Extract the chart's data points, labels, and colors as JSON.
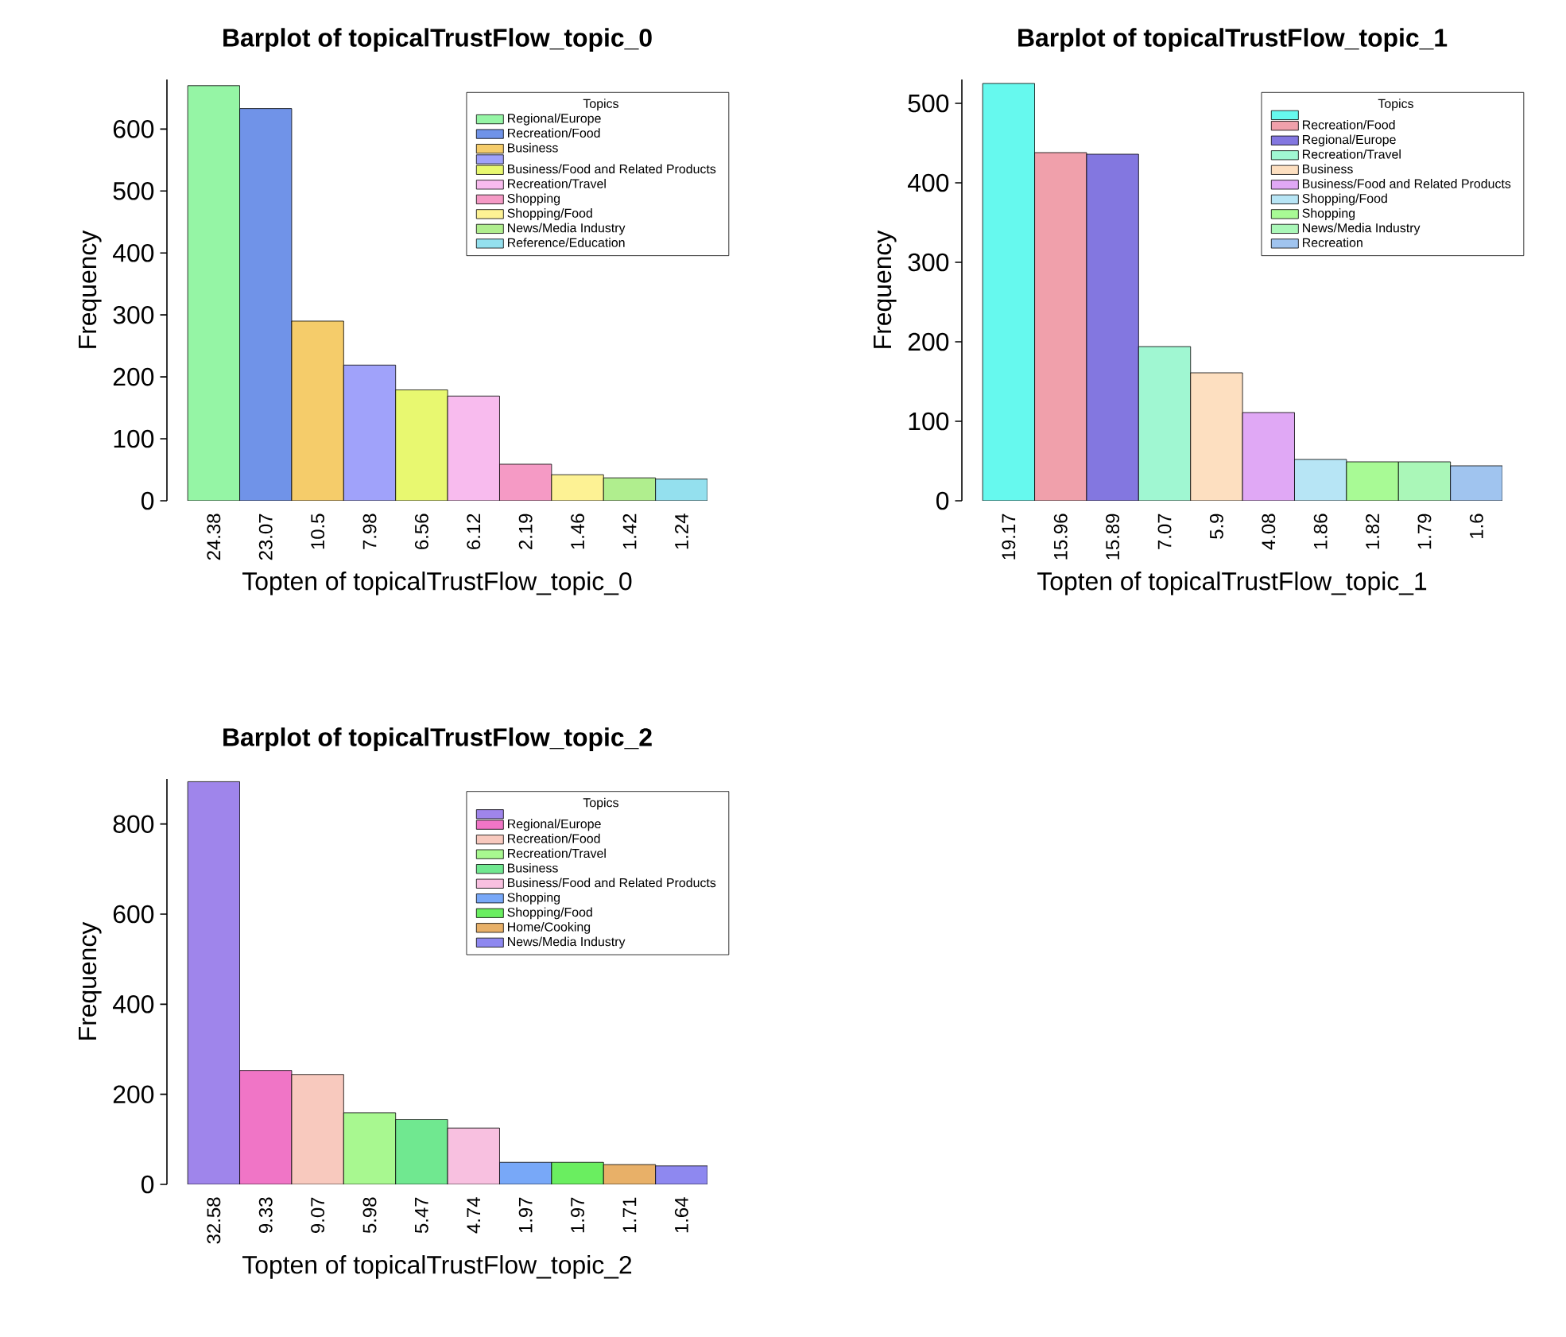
{
  "chart_data": [
    {
      "type": "bar",
      "title": "Barplot of topicalTrustFlow_topic_0",
      "xlabel": "Topten of topicalTrustFlow_topic_0",
      "ylabel": "Frequency",
      "legend_title": "Topics",
      "legend": "top right",
      "categories": [
        "24.38",
        "23.07",
        "10.5",
        "7.98",
        "6.56",
        "6.12",
        "2.19",
        "1.46",
        "1.42",
        "1.24"
      ],
      "ylim": [
        0,
        680
      ],
      "yticks": [
        0,
        100,
        200,
        300,
        400,
        500,
        600
      ],
      "series": [
        {
          "name": "Regional/Europe",
          "color": "#95f5a5",
          "values": [
            670,
            null,
            null,
            null,
            null,
            null,
            null,
            null,
            null,
            null
          ]
        },
        {
          "name": "Recreation/Food",
          "color": "#7093e8",
          "values": [
            null,
            633,
            null,
            null,
            null,
            null,
            null,
            null,
            null,
            null
          ]
        },
        {
          "name": "Business",
          "color": "#f5cc6a",
          "values": [
            null,
            null,
            290,
            null,
            null,
            null,
            null,
            null,
            null,
            null
          ]
        },
        {
          "color": "#a0a2fa",
          "values": [
            null,
            null,
            null,
            219,
            null,
            null,
            null,
            null,
            null,
            null
          ]
        },
        {
          "name": "Business/Food and Related Products",
          "color": "#e8f870",
          "values": [
            null,
            null,
            null,
            null,
            179,
            null,
            null,
            null,
            null,
            null
          ]
        },
        {
          "name": "Recreation/Travel",
          "color": "#f8bbee",
          "values": [
            null,
            null,
            null,
            null,
            null,
            169,
            null,
            null,
            null,
            null
          ]
        },
        {
          "name": "Shopping",
          "color": "#f59ac5",
          "values": [
            null,
            null,
            null,
            null,
            null,
            null,
            59,
            null,
            null,
            null
          ]
        },
        {
          "name": "Shopping/Food",
          "color": "#fdf294",
          "values": [
            null,
            null,
            null,
            null,
            null,
            null,
            null,
            42,
            null,
            null
          ]
        },
        {
          "name": "News/Media Industry",
          "color": "#b0ee8e",
          "values": [
            null,
            null,
            null,
            null,
            null,
            null,
            null,
            null,
            37,
            null
          ]
        },
        {
          "name": "Reference/Education",
          "color": "#94e0ee",
          "values": [
            null,
            null,
            null,
            null,
            null,
            null,
            null,
            null,
            null,
            35
          ]
        }
      ]
    },
    {
      "type": "bar",
      "title": "Barplot of topicalTrustFlow_topic_1",
      "xlabel": "Topten of topicalTrustFlow_topic_1",
      "ylabel": "Frequency",
      "legend_title": "Topics",
      "legend": "top right",
      "categories": [
        "19.17",
        "15.96",
        "15.89",
        "7.07",
        "5.9",
        "4.08",
        "1.86",
        "1.82",
        "1.79",
        "1.6"
      ],
      "ylim": [
        0,
        530
      ],
      "yticks": [
        0,
        100,
        200,
        300,
        400,
        500
      ],
      "series": [
        {
          "color": "#66f9ee",
          "values": [
            525,
            null,
            null,
            null,
            null,
            null,
            null,
            null,
            null,
            null
          ]
        },
        {
          "name": "Recreation/Food",
          "color": "#f0a0ab",
          "values": [
            null,
            438,
            null,
            null,
            null,
            null,
            null,
            null,
            null,
            null
          ]
        },
        {
          "name": "Regional/Europe",
          "color": "#8377e0",
          "values": [
            null,
            null,
            436,
            null,
            null,
            null,
            null,
            null,
            null,
            null
          ]
        },
        {
          "name": "Recreation/Travel",
          "color": "#a0f7d2",
          "values": [
            null,
            null,
            null,
            194,
            null,
            null,
            null,
            null,
            null,
            null
          ]
        },
        {
          "name": "Business",
          "color": "#fddfc0",
          "values": [
            null,
            null,
            null,
            null,
            161,
            null,
            null,
            null,
            null,
            null
          ]
        },
        {
          "name": "Business/Food and Related Products",
          "color": "#e0a8f5",
          "values": [
            null,
            null,
            null,
            null,
            null,
            111,
            null,
            null,
            null,
            null
          ]
        },
        {
          "name": "Shopping/Food",
          "color": "#b7e5f5",
          "values": [
            null,
            null,
            null,
            null,
            null,
            null,
            52,
            null,
            null,
            null
          ]
        },
        {
          "name": "Shopping",
          "color": "#a8fa95",
          "values": [
            null,
            null,
            null,
            null,
            null,
            null,
            null,
            49,
            null,
            null
          ]
        },
        {
          "name": "News/Media Industry",
          "color": "#aaf7b8",
          "values": [
            null,
            null,
            null,
            null,
            null,
            null,
            null,
            null,
            49,
            null
          ]
        },
        {
          "name": "Recreation",
          "color": "#a0c4ef",
          "values": [
            null,
            null,
            null,
            null,
            null,
            null,
            null,
            null,
            null,
            44
          ]
        }
      ]
    },
    {
      "type": "bar",
      "title": "Barplot of topicalTrustFlow_topic_2",
      "xlabel": "Topten of topicalTrustFlow_topic_2",
      "ylabel": "Frequency",
      "legend_title": "Topics",
      "legend": "top right",
      "categories": [
        "32.58",
        "9.33",
        "9.07",
        "5.98",
        "5.47",
        "4.74",
        "1.97",
        "1.97",
        "1.71",
        "1.64"
      ],
      "ylim": [
        0,
        900
      ],
      "yticks": [
        0,
        200,
        400,
        600,
        800
      ],
      "series": [
        {
          "color": "#9f85eb",
          "values": [
            894,
            null,
            null,
            null,
            null,
            null,
            null,
            null,
            null,
            null
          ]
        },
        {
          "name": "Regional/Europe",
          "color": "#f075c6",
          "values": [
            null,
            253,
            null,
            null,
            null,
            null,
            null,
            null,
            null,
            null
          ]
        },
        {
          "name": "Recreation/Food",
          "color": "#f8c9be",
          "values": [
            null,
            null,
            244,
            null,
            null,
            null,
            null,
            null,
            null,
            null
          ]
        },
        {
          "name": "Recreation/Travel",
          "color": "#a8f890",
          "values": [
            null,
            null,
            null,
            159,
            null,
            null,
            null,
            null,
            null,
            null
          ]
        },
        {
          "name": "Business",
          "color": "#70e890",
          "values": [
            null,
            null,
            null,
            null,
            144,
            null,
            null,
            null,
            null,
            null
          ]
        },
        {
          "name": "Business/Food and Related Products",
          "color": "#f8c0e0",
          "values": [
            null,
            null,
            null,
            null,
            null,
            125,
            null,
            null,
            null,
            null
          ]
        },
        {
          "name": "Shopping",
          "color": "#78a8f8",
          "values": [
            null,
            null,
            null,
            null,
            null,
            null,
            49,
            null,
            null,
            null
          ]
        },
        {
          "name": "Shopping/Food",
          "color": "#6aee60",
          "values": [
            null,
            null,
            null,
            null,
            null,
            null,
            null,
            49,
            null,
            null
          ]
        },
        {
          "name": "Home/Cooking",
          "color": "#e8b068",
          "values": [
            null,
            null,
            null,
            null,
            null,
            null,
            null,
            null,
            44,
            null
          ]
        },
        {
          "name": "News/Media Industry",
          "color": "#8e88f0",
          "values": [
            null,
            null,
            null,
            null,
            null,
            null,
            null,
            null,
            null,
            41
          ]
        }
      ]
    }
  ]
}
